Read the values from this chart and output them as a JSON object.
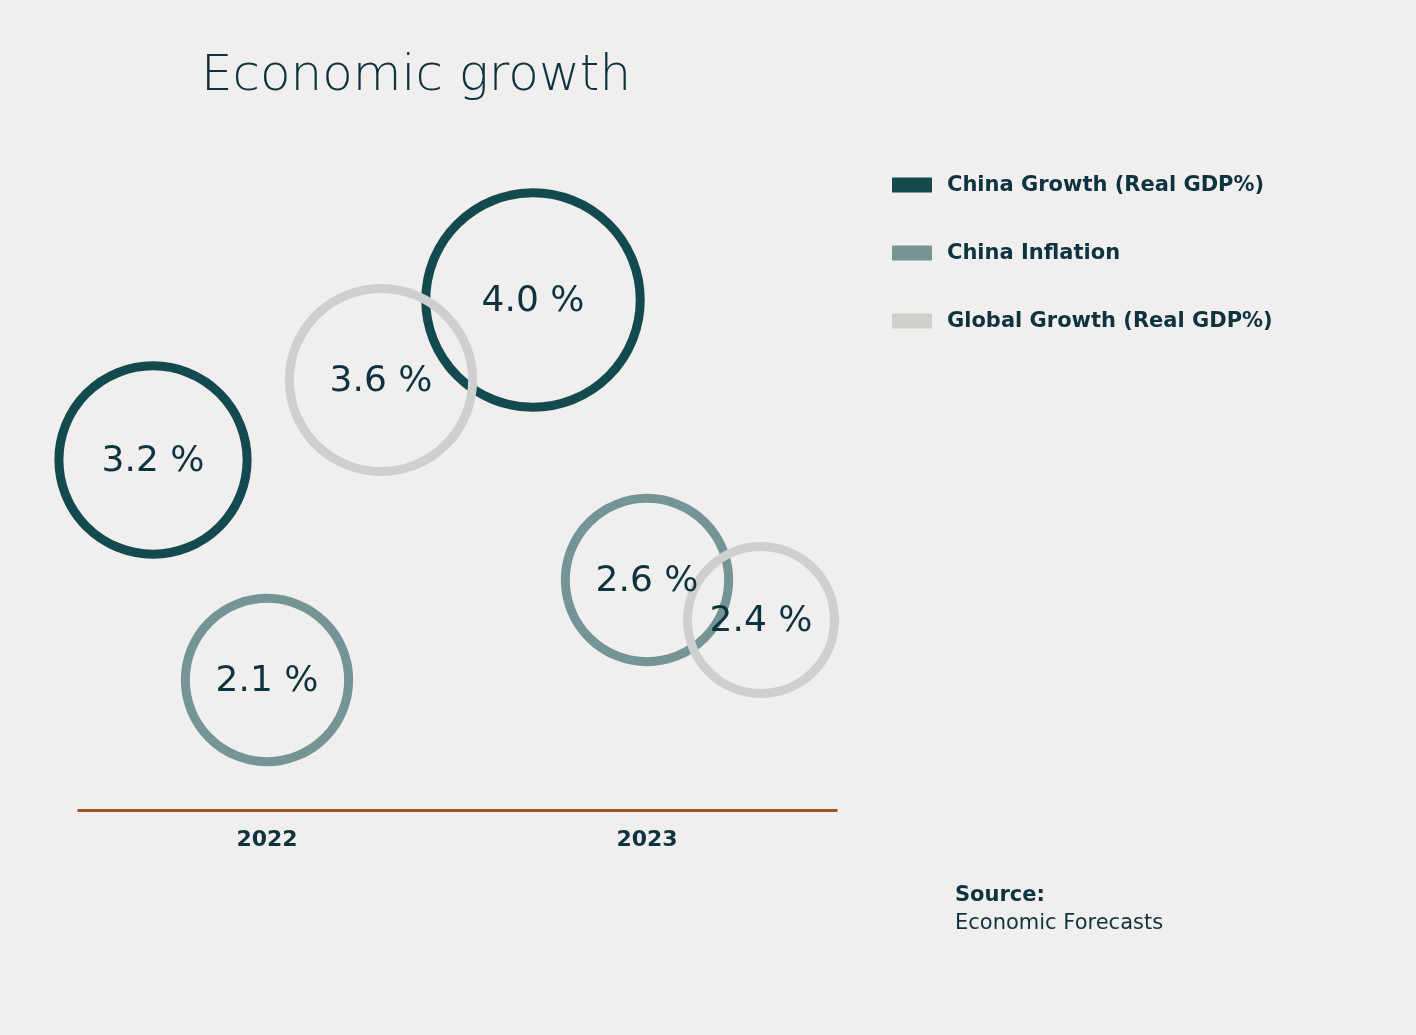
{
  "chart_data": {
    "type": "bubble",
    "title": "Economic growth",
    "categories": [
      "2022",
      "2023"
    ],
    "series": [
      {
        "name": "China Growth (Real GDP%)",
        "color": "#134a50",
        "values": [
          3.2,
          4.0
        ],
        "sizes": [
          0.77,
          1
        ],
        "value_labels": [
          "3.2 %",
          "4.0 %"
        ]
      },
      {
        "name": "China Inflation",
        "color": "#759496",
        "values": [
          2.1,
          2.6
        ],
        "sizes": [
          0.58,
          0.58
        ],
        "value_labels": [
          "2.1 %",
          "2.6 %"
        ]
      },
      {
        "name": "Global Growth (Real GDP%)",
        "color": "#cdd0cc",
        "values": [
          3.6,
          2.4
        ],
        "sizes": [
          0.73,
          0.47
        ],
        "value_labels": [
          "3.6 %",
          "2.4 %"
        ]
      }
    ],
    "legend": "right",
    "grid": false,
    "tick_labels": "x",
    "annotations": [
      "Source:",
      "Economic Forecasts"
    ]
  }
}
